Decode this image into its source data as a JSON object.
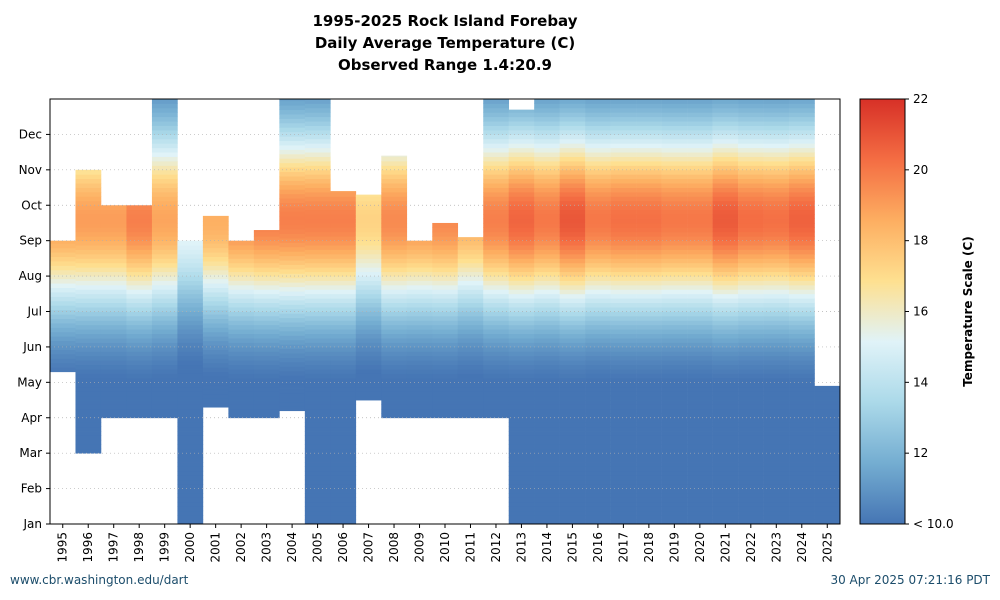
{
  "chart_data": {
    "type": "heatmap",
    "title_lines": [
      "1995-2025 Rock Island Forebay",
      "Daily Average Temperature (C)",
      "Observed Range 1.4:20.9"
    ],
    "xlabel": "",
    "ylabel": "",
    "years": [
      "1995",
      "1996",
      "1997",
      "1998",
      "1999",
      "2000",
      "2001",
      "2002",
      "2003",
      "2004",
      "2005",
      "2006",
      "2007",
      "2008",
      "2009",
      "2010",
      "2011",
      "2012",
      "2013",
      "2014",
      "2015",
      "2016",
      "2017",
      "2018",
      "2019",
      "2020",
      "2021",
      "2022",
      "2023",
      "2024",
      "2025"
    ],
    "months": [
      "Jan",
      "Feb",
      "Mar",
      "Apr",
      "May",
      "Jun",
      "Jul",
      "Aug",
      "Sep",
      "Oct",
      "Nov",
      "Dec"
    ],
    "colorbar": {
      "label": "Temperature Scale (C)",
      "min": 10,
      "max": 22,
      "ticks": [
        "< 10.0",
        "12",
        "14",
        "16",
        "18",
        "20",
        "22"
      ],
      "tick_values": [
        10,
        12,
        14,
        16,
        18,
        20,
        22
      ],
      "colors": [
        "#4575b4",
        "#74add1",
        "#abd9e9",
        "#e0f3f8",
        "#fee090",
        "#fdae61",
        "#f46d43",
        "#d73027"
      ]
    },
    "coverage": [
      {
        "year": "1995",
        "start_month": 4.3,
        "end_month": 8.0,
        "peak": 19.0
      },
      {
        "year": "1996",
        "start_month": 2.0,
        "end_month": 10.0,
        "peak": 19.0
      },
      {
        "year": "1997",
        "start_month": 3.0,
        "end_month": 9.0,
        "peak": 19.0
      },
      {
        "year": "1998",
        "start_month": 3.0,
        "end_month": 9.0,
        "peak": 19.8
      },
      {
        "year": "1999",
        "start_month": 3.0,
        "end_month": 12.0,
        "peak": 18.8
      },
      {
        "year": "2000",
        "start_month": 0.0,
        "end_month": 8.0,
        "peak": 15.5
      },
      {
        "year": "2001",
        "start_month": 3.3,
        "end_month": 8.7,
        "peak": 18.5
      },
      {
        "year": "2002",
        "start_month": 3.0,
        "end_month": 8.0,
        "peak": 19.5
      },
      {
        "year": "2003",
        "start_month": 3.0,
        "end_month": 8.3,
        "peak": 19.8
      },
      {
        "year": "2004",
        "start_month": 3.2,
        "end_month": 12.0,
        "peak": 19.8
      },
      {
        "year": "2005",
        "start_month": 0.0,
        "end_month": 12.0,
        "peak": 19.8
      },
      {
        "year": "2006",
        "start_month": 0.0,
        "end_month": 9.4,
        "peak": 19.8
      },
      {
        "year": "2007",
        "start_month": 3.5,
        "end_month": 9.3,
        "peak": 17.3
      },
      {
        "year": "2008",
        "start_month": 3.0,
        "end_month": 10.4,
        "peak": 19.5
      },
      {
        "year": "2009",
        "start_month": 3.0,
        "end_month": 8.0,
        "peak": 19.3
      },
      {
        "year": "2010",
        "start_month": 3.0,
        "end_month": 8.5,
        "peak": 19.5
      },
      {
        "year": "2011",
        "start_month": 3.0,
        "end_month": 8.1,
        "peak": 18.5
      },
      {
        "year": "2012",
        "start_month": 3.0,
        "end_month": 12.0,
        "peak": 19.8
      },
      {
        "year": "2013",
        "start_month": 0.0,
        "end_month": 11.7,
        "peak": 20.5
      },
      {
        "year": "2014",
        "start_month": 0.0,
        "end_month": 12.0,
        "peak": 20.0
      },
      {
        "year": "2015",
        "start_month": 0.0,
        "end_month": 12.0,
        "peak": 20.9
      },
      {
        "year": "2016",
        "start_month": 0.0,
        "end_month": 12.0,
        "peak": 20.0
      },
      {
        "year": "2017",
        "start_month": 0.0,
        "end_month": 12.0,
        "peak": 20.2
      },
      {
        "year": "2018",
        "start_month": 0.0,
        "end_month": 12.0,
        "peak": 20.2
      },
      {
        "year": "2019",
        "start_month": 0.0,
        "end_month": 12.0,
        "peak": 20.0
      },
      {
        "year": "2020",
        "start_month": 0.0,
        "end_month": 12.0,
        "peak": 20.0
      },
      {
        "year": "2021",
        "start_month": 0.0,
        "end_month": 12.0,
        "peak": 20.8
      },
      {
        "year": "2022",
        "start_month": 0.0,
        "end_month": 12.0,
        "peak": 20.3
      },
      {
        "year": "2023",
        "start_month": 0.0,
        "end_month": 12.0,
        "peak": 20.2
      },
      {
        "year": "2024",
        "start_month": 0.0,
        "end_month": 12.0,
        "peak": 20.6
      },
      {
        "year": "2025",
        "start_month": 0.0,
        "end_month": 3.9,
        "peak": 10.0
      }
    ],
    "grid": true,
    "legend_position": "right"
  },
  "footer": {
    "left": "www.cbr.washington.edu/dart",
    "right": "30 Apr 2025 07:21:16 PDT"
  }
}
